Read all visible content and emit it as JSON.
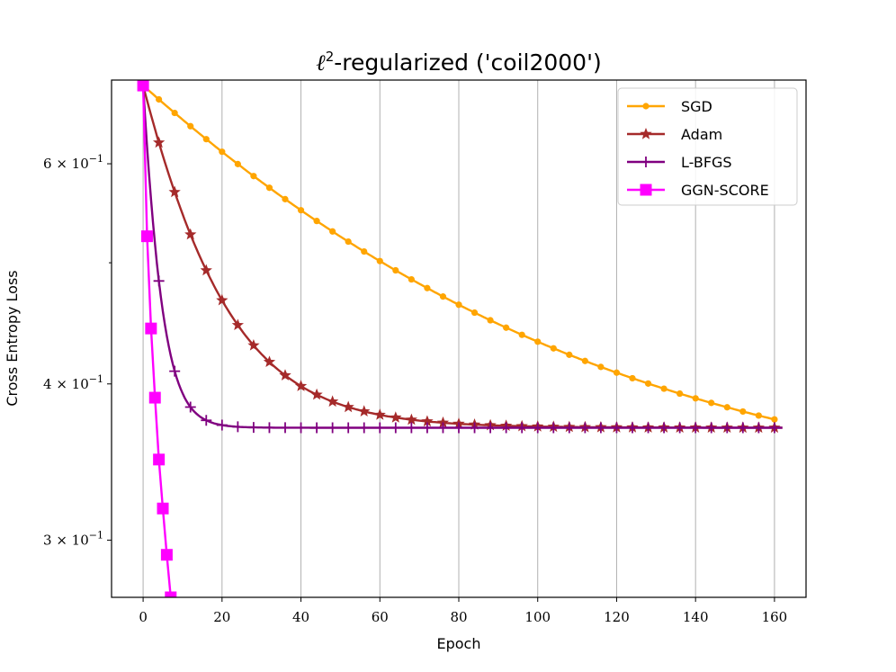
{
  "chart_data": {
    "type": "line",
    "title": "ℓ²-regularized ('coil2000')",
    "title_parts": {
      "ell": "ℓ",
      "sup": "2",
      "rest": "-regularized ('coil2000')"
    },
    "xlabel": "Epoch",
    "ylabel": "Cross Entropy Loss",
    "yscale": "log",
    "xlim": [
      -8,
      168
    ],
    "ylim": [
      0.27,
      0.7
    ],
    "xticks": [
      0,
      20,
      40,
      60,
      80,
      100,
      120,
      140,
      160
    ],
    "yticks": [
      {
        "value": 0.6,
        "mant": "6",
        "exp": "−1"
      },
      {
        "value": 0.4,
        "mant": "4",
        "exp": "−1"
      },
      {
        "value": 0.3,
        "mant": "3",
        "exp": "−1"
      }
    ],
    "yminor": [
      0.5
    ],
    "grid": "x",
    "legend_position": "top-right",
    "series": [
      {
        "name": "SGD",
        "color": "#ffa500",
        "marker": "circle",
        "curve": {
          "start": 0.693,
          "end": 0.32,
          "k": 0.012,
          "x0": 0,
          "x1": 160,
          "step": 4
        }
      },
      {
        "name": "Adam",
        "color": "#a52a2a",
        "marker": "star",
        "curve": {
          "start": 0.693,
          "end": 0.369,
          "k": 0.06,
          "x0": 0,
          "x1": 162,
          "step": 4
        }
      },
      {
        "name": "L-BFGS",
        "color": "#800080",
        "marker": "plus",
        "curve": {
          "start": 0.693,
          "end": 0.369,
          "k": 0.26,
          "x0": 0,
          "x1": 162,
          "step": 4
        }
      },
      {
        "name": "GGN-SCORE",
        "color": "#ff00ff",
        "marker": "square",
        "points": [
          [
            0,
            0.693
          ],
          [
            1,
            0.525
          ],
          [
            2,
            0.443
          ],
          [
            3,
            0.39
          ],
          [
            4,
            0.348
          ],
          [
            5,
            0.318
          ],
          [
            6,
            0.292
          ],
          [
            7,
            0.27
          ]
        ]
      }
    ]
  }
}
